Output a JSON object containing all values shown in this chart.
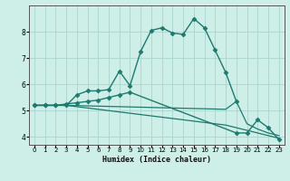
{
  "xlabel": "Humidex (Indice chaleur)",
  "bg_color": "#ceeee8",
  "grid_color": "#aad4ce",
  "line_color": "#1e7a6e",
  "xlim": [
    -0.5,
    23.5
  ],
  "ylim": [
    3.7,
    9.0
  ],
  "xticks": [
    0,
    1,
    2,
    3,
    4,
    5,
    6,
    7,
    8,
    9,
    10,
    11,
    12,
    13,
    14,
    15,
    16,
    17,
    18,
    19,
    20,
    21,
    22,
    23
  ],
  "yticks": [
    4,
    5,
    6,
    7,
    8
  ],
  "series": [
    {
      "x": [
        0,
        1,
        2,
        3,
        4,
        5,
        6,
        7,
        8,
        9,
        10,
        11,
        12,
        13,
        14,
        15,
        16,
        17,
        18,
        19
      ],
      "y": [
        5.2,
        5.2,
        5.2,
        5.2,
        5.6,
        5.75,
        5.75,
        5.8,
        6.5,
        5.95,
        7.25,
        8.05,
        8.15,
        7.95,
        7.9,
        8.5,
        8.15,
        7.3,
        6.45,
        5.35
      ],
      "marker": "D",
      "markersize": 2.5,
      "linewidth": 1.0
    },
    {
      "x": [
        0,
        1,
        2,
        3,
        4,
        5,
        6,
        7,
        8,
        9,
        10,
        11,
        12,
        13,
        14,
        15,
        16,
        17,
        18,
        19,
        20,
        21,
        22,
        23
      ],
      "y": [
        5.2,
        5.2,
        5.2,
        5.2,
        5.15,
        5.1,
        5.05,
        5.0,
        4.95,
        4.9,
        4.85,
        4.8,
        4.75,
        4.7,
        4.65,
        4.6,
        4.55,
        4.5,
        4.45,
        4.35,
        4.25,
        4.15,
        4.05,
        3.95
      ],
      "marker": null,
      "markersize": 0,
      "linewidth": 0.9
    },
    {
      "x": [
        0,
        1,
        2,
        3,
        4,
        5,
        6,
        7,
        8,
        9,
        10,
        11,
        12,
        13,
        14,
        15,
        16,
        17,
        18,
        19,
        20,
        21,
        22,
        23
      ],
      "y": [
        5.2,
        5.2,
        5.2,
        5.2,
        5.19,
        5.18,
        5.17,
        5.16,
        5.15,
        5.14,
        5.13,
        5.12,
        5.11,
        5.1,
        5.09,
        5.08,
        5.07,
        5.06,
        5.05,
        5.35,
        4.5,
        4.3,
        4.15,
        4.05
      ],
      "marker": null,
      "markersize": 0,
      "linewidth": 0.9
    },
    {
      "x": [
        0,
        1,
        2,
        3,
        4,
        5,
        6,
        7,
        8,
        9,
        19,
        20,
        21,
        22,
        23
      ],
      "y": [
        5.2,
        5.2,
        5.2,
        5.25,
        5.3,
        5.35,
        5.4,
        5.5,
        5.6,
        5.7,
        4.15,
        4.15,
        4.65,
        4.35,
        3.9
      ],
      "marker": "D",
      "markersize": 2.5,
      "linewidth": 1.0
    }
  ]
}
